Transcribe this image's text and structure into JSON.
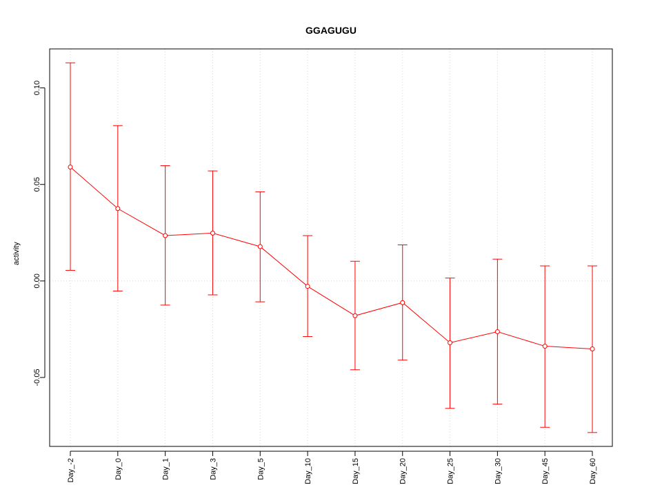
{
  "chart_data": {
    "type": "line",
    "title": "GGAGUGU",
    "xlabel": "",
    "ylabel": "activity",
    "categories": [
      "Day_-2",
      "Day_0",
      "Day_1",
      "Day_3",
      "Day_5",
      "Day_10",
      "Day_15",
      "Day_20",
      "Day_25",
      "Day_30",
      "Day_45",
      "Day_60"
    ],
    "series": [
      {
        "values": [
          0.059,
          0.0375,
          0.0235,
          0.0248,
          0.0178,
          -0.0028,
          -0.018,
          -0.0112,
          -0.032,
          -0.0263,
          -0.0338,
          -0.0352
        ],
        "error_upper": [
          0.113,
          0.0805,
          0.0597,
          0.057,
          0.0462,
          0.0235,
          0.0102,
          0.0187,
          0.0015,
          0.0113,
          0.0078,
          0.0078
        ],
        "error_lower": [
          0.0055,
          -0.0052,
          -0.0125,
          -0.0072,
          -0.0108,
          -0.0288,
          -0.046,
          -0.041,
          -0.066,
          -0.0638,
          -0.0758,
          -0.0785
        ],
        "color": "#ff0000"
      }
    ],
    "yticks": [
      "0.10",
      "0.05",
      "0.00",
      "-0.05"
    ],
    "ytick_values": [
      0.1,
      0.05,
      0.0,
      -0.05
    ],
    "ylim": [
      -0.0857,
      0.1202
    ],
    "grid": true,
    "grid_color": "#d3d3d3",
    "legend": "none"
  }
}
